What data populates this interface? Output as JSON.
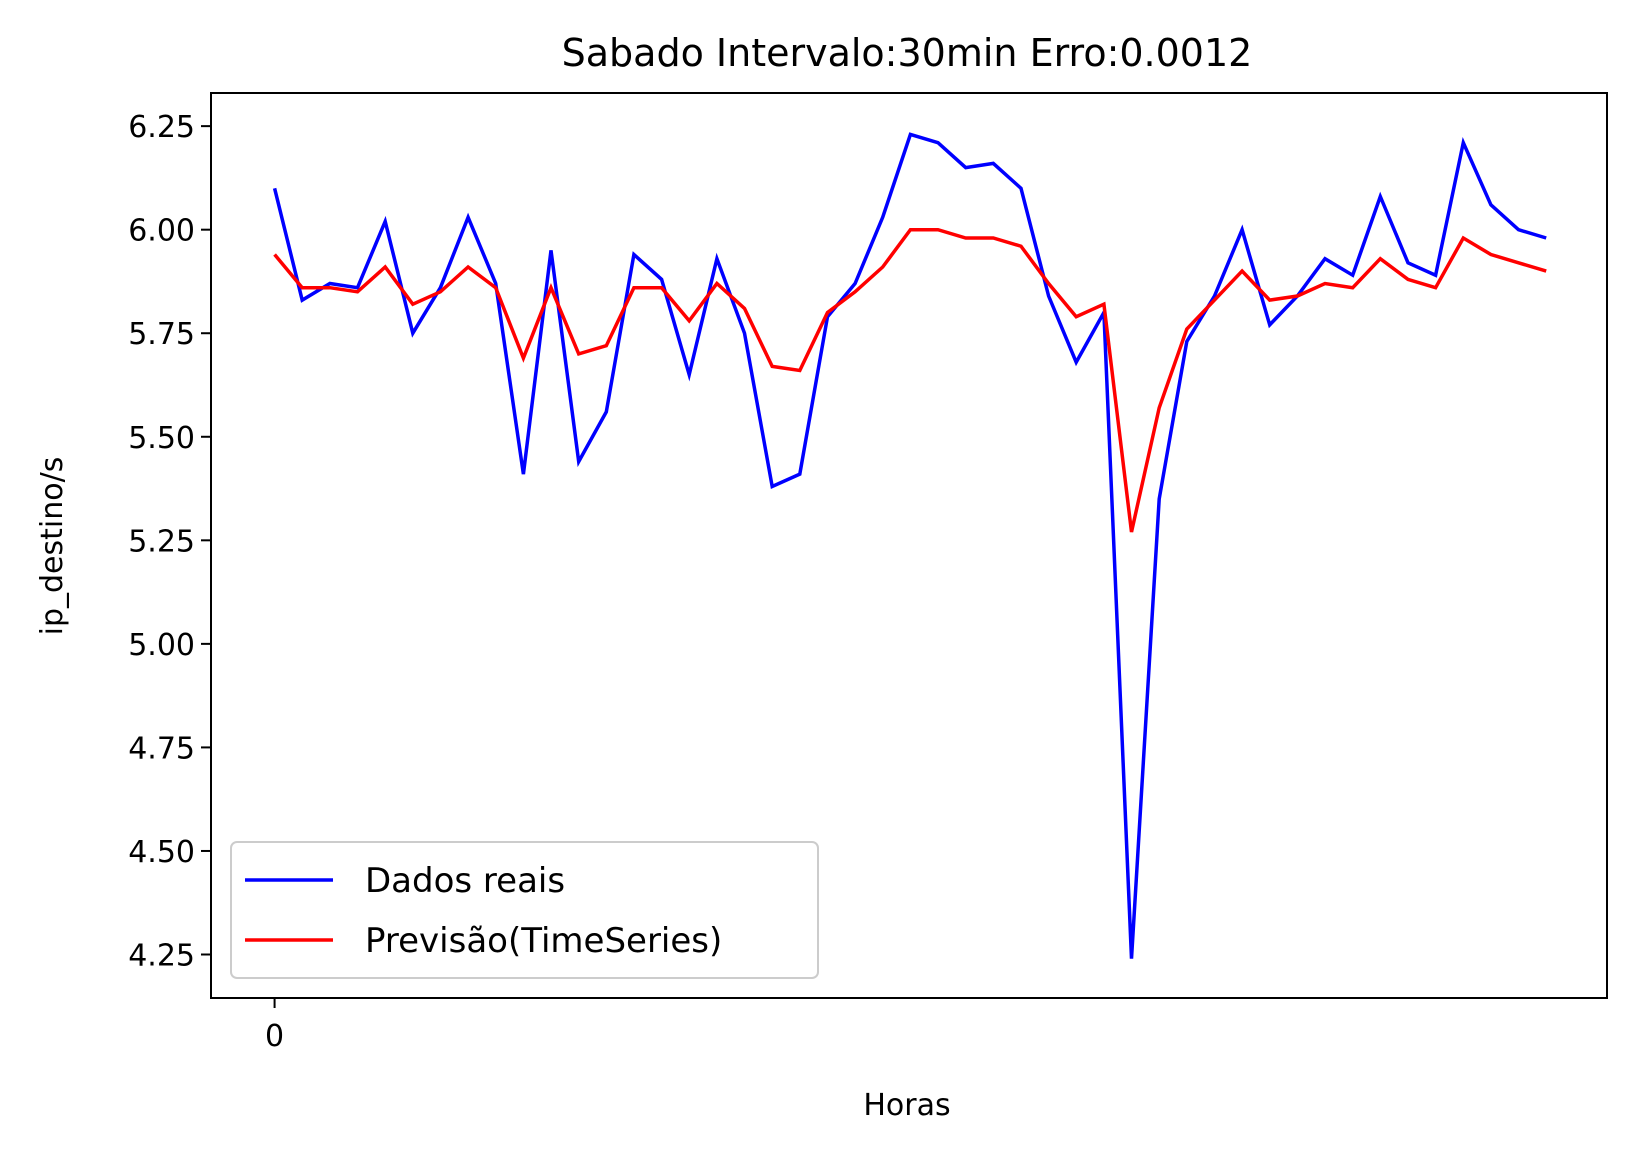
{
  "chart_data": {
    "type": "line",
    "title": "Sabado Intervalo:30min Erro:0.0012",
    "xlabel": "Horas",
    "ylabel": "ip_destino/s",
    "xticks": [
      {
        "value": 0,
        "label": "0"
      }
    ],
    "yticks": [
      {
        "value": 4.25,
        "label": "4.25"
      },
      {
        "value": 4.5,
        "label": "4.50"
      },
      {
        "value": 4.75,
        "label": "4.75"
      },
      {
        "value": 5.0,
        "label": "5.00"
      },
      {
        "value": 5.25,
        "label": "5.25"
      },
      {
        "value": 5.5,
        "label": "5.50"
      },
      {
        "value": 5.75,
        "label": "5.75"
      },
      {
        "value": 6.0,
        "label": "6.00"
      },
      {
        "value": 6.25,
        "label": "6.25"
      }
    ],
    "xlim": [
      -2.3,
      48.2
    ],
    "ylim": [
      4.145,
      6.33
    ],
    "grid": false,
    "legend_position": "lower-left",
    "x": [
      0,
      1,
      2,
      3,
      4,
      5,
      6,
      7,
      8,
      9,
      10,
      11,
      12,
      13,
      14,
      15,
      16,
      17,
      18,
      19,
      20,
      21,
      22,
      23,
      24,
      25,
      26,
      27,
      28,
      29,
      30,
      31,
      32,
      33,
      34,
      35,
      36,
      37,
      38,
      39,
      40,
      41,
      42,
      43,
      44,
      45,
      46
    ],
    "series": [
      {
        "name": "Dados reais",
        "color": "#0000ff",
        "values": [
          6.1,
          5.83,
          5.87,
          5.86,
          6.02,
          5.75,
          5.86,
          6.03,
          5.87,
          5.41,
          5.95,
          5.44,
          5.56,
          5.94,
          5.88,
          5.65,
          5.93,
          5.75,
          5.38,
          5.41,
          5.79,
          5.87,
          6.03,
          6.23,
          6.21,
          6.15,
          6.16,
          6.1,
          5.84,
          5.68,
          5.8,
          4.24,
          5.35,
          5.73,
          5.84,
          6.0,
          5.77,
          5.84,
          5.93,
          5.89,
          6.08,
          5.92,
          5.89,
          6.21,
          6.06,
          6.0,
          5.98
        ]
      },
      {
        "name": "Previsão(TimeSeries)",
        "color": "#ff0000",
        "values": [
          5.94,
          5.86,
          5.86,
          5.85,
          5.91,
          5.82,
          5.85,
          5.91,
          5.86,
          5.69,
          5.86,
          5.7,
          5.72,
          5.86,
          5.86,
          5.78,
          5.87,
          5.81,
          5.67,
          5.66,
          5.8,
          5.85,
          5.91,
          6.0,
          6.0,
          5.98,
          5.98,
          5.96,
          5.87,
          5.79,
          5.82,
          5.27,
          5.57,
          5.76,
          5.83,
          5.9,
          5.83,
          5.84,
          5.87,
          5.86,
          5.93,
          5.88,
          5.86,
          5.98,
          5.94,
          5.92,
          5.9
        ]
      }
    ]
  }
}
